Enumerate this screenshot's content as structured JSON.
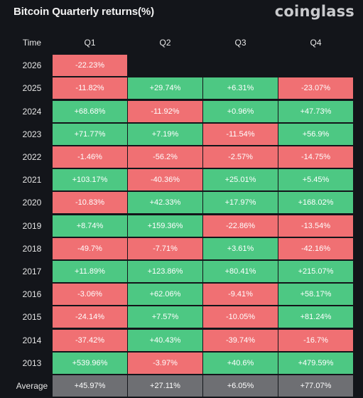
{
  "title": "Bitcoin Quarterly returns(%)",
  "brand": "coinglass",
  "colors": {
    "positive": "#4dc883",
    "negative": "#f07073",
    "average": "#6e6f73",
    "background": "#13151a"
  },
  "chart_data": {
    "type": "heatmap",
    "title": "Bitcoin Quarterly returns(%)",
    "row_header": "Time",
    "columns": [
      "Q1",
      "Q2",
      "Q3",
      "Q4"
    ],
    "rows": [
      {
        "label": "2026",
        "values": [
          "-22.23%",
          null,
          null,
          null
        ]
      },
      {
        "label": "2025",
        "values": [
          "-11.82%",
          "+29.74%",
          "+6.31%",
          "-23.07%"
        ]
      },
      {
        "label": "2024",
        "values": [
          "+68.68%",
          "-11.92%",
          "+0.96%",
          "+47.73%"
        ]
      },
      {
        "label": "2023",
        "values": [
          "+71.77%",
          "+7.19%",
          "-11.54%",
          "+56.9%"
        ]
      },
      {
        "label": "2022",
        "values": [
          "-1.46%",
          "-56.2%",
          "-2.57%",
          "-14.75%"
        ]
      },
      {
        "label": "2021",
        "values": [
          "+103.17%",
          "-40.36%",
          "+25.01%",
          "+5.45%"
        ]
      },
      {
        "label": "2020",
        "values": [
          "-10.83%",
          "+42.33%",
          "+17.97%",
          "+168.02%"
        ]
      },
      {
        "label": "2019",
        "values": [
          "+8.74%",
          "+159.36%",
          "-22.86%",
          "-13.54%"
        ]
      },
      {
        "label": "2018",
        "values": [
          "-49.7%",
          "-7.71%",
          "+3.61%",
          "-42.16%"
        ]
      },
      {
        "label": "2017",
        "values": [
          "+11.89%",
          "+123.86%",
          "+80.41%",
          "+215.07%"
        ]
      },
      {
        "label": "2016",
        "values": [
          "-3.06%",
          "+62.06%",
          "-9.41%",
          "+58.17%"
        ]
      },
      {
        "label": "2015",
        "values": [
          "-24.14%",
          "+7.57%",
          "-10.05%",
          "+81.24%"
        ]
      },
      {
        "label": "2014",
        "values": [
          "-37.42%",
          "+40.43%",
          "-39.74%",
          "-16.7%"
        ]
      },
      {
        "label": "2013",
        "values": [
          "+539.96%",
          "-3.97%",
          "+40.6%",
          "+479.59%"
        ]
      }
    ],
    "average": {
      "label": "Average",
      "values": [
        "+45.97%",
        "+27.11%",
        "+6.05%",
        "+77.07%"
      ]
    }
  }
}
